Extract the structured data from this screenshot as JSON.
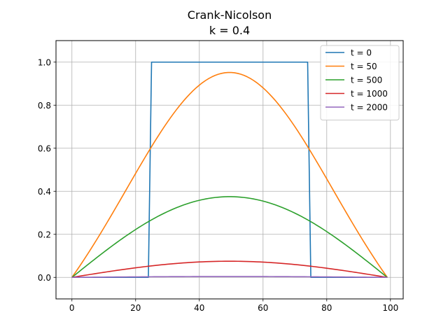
{
  "chart_data": {
    "type": "line",
    "title_lines": [
      "Crank-Nicolson",
      "k = 0.4"
    ],
    "xlabel": "",
    "ylabel": "",
    "xlim": [
      -5,
      104
    ],
    "ylim": [
      -0.1,
      1.1
    ],
    "xticks": [
      0,
      20,
      40,
      60,
      80,
      100
    ],
    "yticks": [
      0.0,
      0.2,
      0.4,
      0.6,
      0.8,
      1.0
    ],
    "xtick_labels": [
      "0",
      "20",
      "40",
      "60",
      "80",
      "100"
    ],
    "ytick_labels": [
      "0.0",
      "0.2",
      "0.4",
      "0.6",
      "0.8",
      "1.0"
    ],
    "grid": true,
    "legend_position": "top-right",
    "series": [
      {
        "name": "t = 0",
        "color": "#1f77b4",
        "shape": "step",
        "x": [
          0,
          24,
          25,
          74,
          75,
          99
        ],
        "y": [
          0,
          0,
          1,
          1,
          0,
          0
        ]
      },
      {
        "name": "t = 50",
        "color": "#ff7f0e",
        "shape": "bell",
        "peak": 0.952,
        "width": 0.7
      },
      {
        "name": "t = 500",
        "color": "#2ca02c",
        "shape": "sine",
        "peak": 0.375
      },
      {
        "name": "t = 1000",
        "color": "#d62728",
        "shape": "sine",
        "peak": 0.075
      },
      {
        "name": "t = 2000",
        "color": "#9467bd",
        "shape": "sine",
        "peak": 0.004
      }
    ]
  }
}
